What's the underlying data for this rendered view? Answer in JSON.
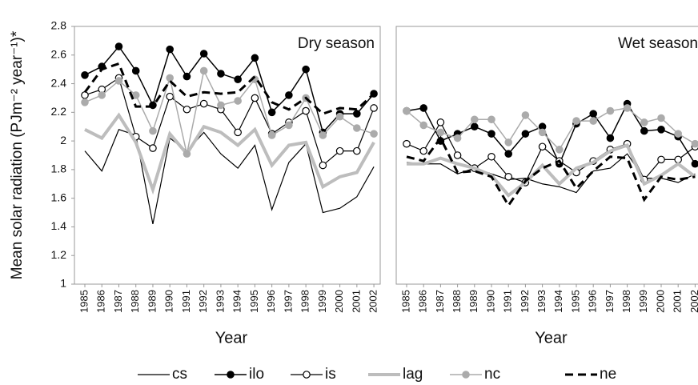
{
  "ylabel": "Mean solar radiation (PJm⁻² year⁻¹)*",
  "legend": [
    {
      "name": "cs",
      "color": "#000000",
      "width": 1.2,
      "marker": null,
      "dash": null
    },
    {
      "name": "ilo",
      "color": "#000000",
      "width": 1.5,
      "marker": "filled",
      "dash": null
    },
    {
      "name": "is",
      "color": "#000000",
      "width": 1.2,
      "marker": "open",
      "dash": null
    },
    {
      "name": "lag",
      "color": "#bdbdbd",
      "width": 4,
      "marker": null,
      "dash": null
    },
    {
      "name": "nc",
      "color": "#ababab",
      "width": 1.5,
      "marker": "filled",
      "dash": null
    },
    {
      "name": "ne",
      "color": "#000000",
      "width": 3,
      "marker": null,
      "dash": "10 6"
    }
  ],
  "chart_data": [
    {
      "type": "line",
      "title": "Dry season",
      "xlabel": "Year",
      "categories": [
        "1985",
        "1986",
        "1987",
        "1988",
        "1989",
        "1990",
        "1991",
        "1992",
        "1993",
        "1994",
        "1995",
        "1996",
        "1997",
        "1998",
        "1999",
        "2000",
        "2001",
        "2002"
      ],
      "ylim": [
        1,
        2.8
      ],
      "yticks": [
        1,
        1.2,
        1.4,
        1.6,
        1.8,
        2,
        2.2,
        2.4,
        2.6,
        2.8
      ],
      "series": [
        {
          "values": [
            1.93,
            1.79,
            2.08,
            2.04,
            1.42,
            2.02,
            1.93,
            2.06,
            1.91,
            1.81,
            1.97,
            1.52,
            1.85,
            1.98,
            1.5,
            1.53,
            1.61,
            1.82
          ]
        },
        {
          "values": [
            2.46,
            2.52,
            2.66,
            2.49,
            2.25,
            2.64,
            2.45,
            2.61,
            2.47,
            2.43,
            2.58,
            2.2,
            2.32,
            2.5,
            2.06,
            2.19,
            2.19,
            2.33
          ]
        },
        {
          "values": [
            2.32,
            2.36,
            2.44,
            2.03,
            1.95,
            2.31,
            2.22,
            2.26,
            2.22,
            2.06,
            2.3,
            2.05,
            2.13,
            2.21,
            1.83,
            1.93,
            1.93,
            2.23
          ]
        },
        {
          "values": [
            2.08,
            2.02,
            2.18,
            1.99,
            1.66,
            2.05,
            1.91,
            2.1,
            2.06,
            1.97,
            2.08,
            1.83,
            1.97,
            1.99,
            1.68,
            1.75,
            1.78,
            1.99
          ]
        },
        {
          "values": [
            2.27,
            2.32,
            2.42,
            2.32,
            2.07,
            2.44,
            1.91,
            2.49,
            2.25,
            2.28,
            2.43,
            2.04,
            2.11,
            2.3,
            2.04,
            2.17,
            2.09,
            2.05
          ]
        },
        {
          "values": [
            2.34,
            2.5,
            2.54,
            2.24,
            2.24,
            2.42,
            2.31,
            2.34,
            2.33,
            2.34,
            2.45,
            2.27,
            2.22,
            2.3,
            2.19,
            2.23,
            2.22,
            2.33
          ]
        }
      ]
    },
    {
      "type": "line",
      "title": "Wet season",
      "xlabel": "Year",
      "categories": [
        "1985",
        "1986",
        "1987",
        "1988",
        "1989",
        "1990",
        "1991",
        "1992",
        "1993",
        "1994",
        "1995",
        "1996",
        "1997",
        "1998",
        "1999",
        "2000",
        "2001",
        "2002"
      ],
      "ylim": [
        1,
        2.8
      ],
      "series": [
        {
          "values": [
            1.85,
            1.84,
            1.84,
            1.77,
            1.81,
            1.77,
            1.73,
            1.74,
            1.7,
            1.68,
            1.64,
            1.79,
            1.81,
            1.91,
            1.74,
            1.74,
            1.71,
            1.77
          ]
        },
        {
          "values": [
            2.21,
            2.23,
            2.0,
            2.05,
            2.1,
            2.05,
            1.91,
            2.05,
            2.1,
            1.84,
            2.12,
            2.19,
            2.02,
            2.26,
            2.07,
            2.08,
            2.03,
            1.84
          ]
        },
        {
          "values": [
            1.98,
            1.93,
            2.13,
            1.9,
            1.81,
            1.89,
            1.75,
            1.71,
            1.96,
            1.86,
            1.78,
            1.86,
            1.94,
            1.98,
            1.73,
            1.87,
            1.87,
            1.96
          ]
        },
        {
          "values": [
            1.84,
            1.84,
            1.88,
            1.84,
            1.81,
            1.76,
            1.62,
            1.71,
            1.83,
            1.7,
            1.81,
            1.85,
            1.93,
            1.97,
            1.7,
            1.76,
            1.84,
            1.75
          ]
        },
        {
          "values": [
            2.21,
            2.11,
            2.06,
            2.02,
            2.15,
            2.15,
            1.99,
            2.18,
            2.06,
            1.94,
            2.14,
            2.14,
            2.21,
            2.23,
            2.13,
            2.16,
            2.05,
            1.98
          ]
        },
        {
          "values": [
            1.89,
            1.86,
            2.02,
            1.78,
            1.79,
            1.75,
            1.55,
            1.72,
            1.81,
            1.86,
            1.67,
            1.79,
            1.89,
            1.88,
            1.59,
            1.75,
            1.73,
            1.75
          ]
        }
      ]
    }
  ]
}
